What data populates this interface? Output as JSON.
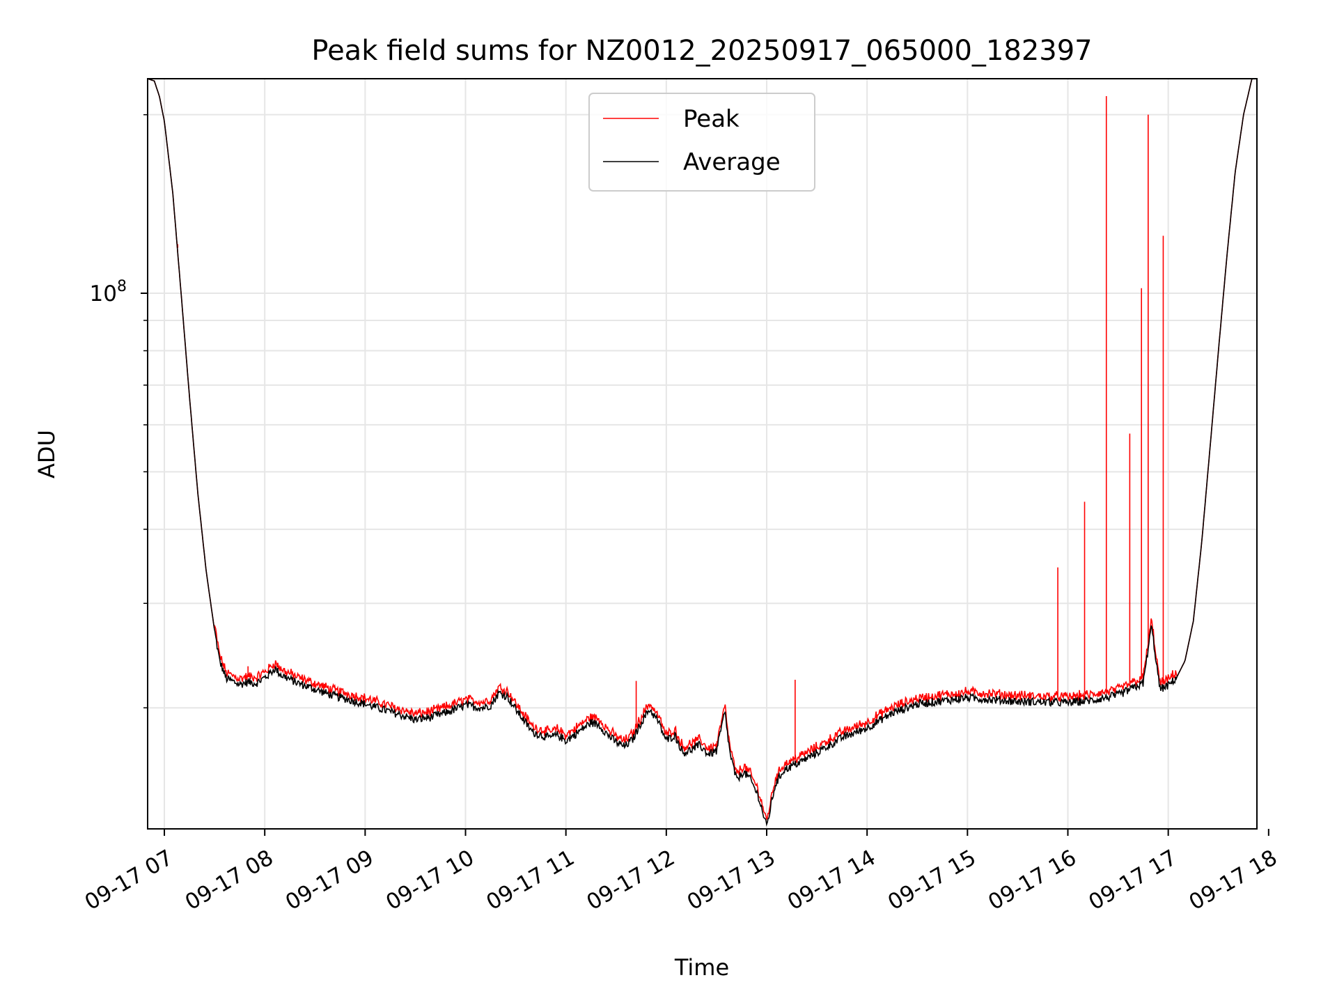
{
  "chart_data": {
    "type": "line",
    "title": "Peak field sums for NZ0012_20250917_065000_182397",
    "xlabel": "Time",
    "ylabel": "ADU",
    "y_scale": "log",
    "grid": true,
    "legend_placement": "upper center",
    "x_range": [
      "2025-09-17 06:50",
      "2025-09-17 17:53"
    ],
    "y_range": [
      12500000,
      230000000
    ],
    "x_tick_labels": [
      "09-17 07",
      "09-17 08",
      "09-17 09",
      "09-17 10",
      "09-17 11",
      "09-17 12",
      "09-17 13",
      "09-17 14",
      "09-17 15",
      "09-17 16",
      "09-17 17",
      "09-17 18"
    ],
    "x_ticks": [
      "2025-09-17 07:00",
      "2025-09-17 08:00",
      "2025-09-17 09:00",
      "2025-09-17 10:00",
      "2025-09-17 11:00",
      "2025-09-17 12:00",
      "2025-09-17 13:00",
      "2025-09-17 14:00",
      "2025-09-17 15:00",
      "2025-09-17 16:00",
      "2025-09-17 17:00",
      "2025-09-17 18:00"
    ],
    "y_tick_major": {
      "value": 100000000,
      "base": "10",
      "exponent": "8"
    },
    "y_minor_ticks": [
      20000000,
      30000000,
      40000000,
      50000000,
      60000000,
      70000000,
      80000000,
      90000000,
      200000000
    ],
    "series": [
      {
        "name": "Peak",
        "color": "#ff0000",
        "baseline_source": "Average",
        "offset_factor": 1.02,
        "spikes": [
          {
            "x": "2025-09-17 07:08",
            "y": 121000000
          },
          {
            "x": "2025-09-17 07:50",
            "y": 23500000
          },
          {
            "x": "2025-09-17 11:42",
            "y": 22200000
          },
          {
            "x": "2025-09-17 13:17",
            "y": 22300000
          },
          {
            "x": "2025-09-17 15:54",
            "y": 34500000
          },
          {
            "x": "2025-09-17 16:10",
            "y": 44500000
          },
          {
            "x": "2025-09-17 16:23",
            "y": 215000000
          },
          {
            "x": "2025-09-17 16:37",
            "y": 58000000
          },
          {
            "x": "2025-09-17 16:44",
            "y": 102000000
          },
          {
            "x": "2025-09-17 16:48",
            "y": 200000000
          },
          {
            "x": "2025-09-17 16:57",
            "y": 125000000
          }
        ]
      },
      {
        "name": "Average",
        "color": "#000000",
        "x": [
          "2025-09-17 06:50",
          "2025-09-17 06:54",
          "2025-09-17 06:57",
          "2025-09-17 07:00",
          "2025-09-17 07:05",
          "2025-09-17 07:10",
          "2025-09-17 07:15",
          "2025-09-17 07:20",
          "2025-09-17 07:25",
          "2025-09-17 07:30",
          "2025-09-17 07:33",
          "2025-09-17 07:37",
          "2025-09-17 07:45",
          "2025-09-17 07:50",
          "2025-09-17 07:55",
          "2025-09-17 08:02",
          "2025-09-17 08:06",
          "2025-09-17 08:10",
          "2025-09-17 08:20",
          "2025-09-17 08:40",
          "2025-09-17 09:00",
          "2025-09-17 09:20",
          "2025-09-17 09:30",
          "2025-09-17 09:40",
          "2025-09-17 09:50",
          "2025-09-17 10:00",
          "2025-09-17 10:10",
          "2025-09-17 10:15",
          "2025-09-17 10:20",
          "2025-09-17 10:25",
          "2025-09-17 10:30",
          "2025-09-17 10:40",
          "2025-09-17 10:50",
          "2025-09-17 10:55",
          "2025-09-17 11:00",
          "2025-09-17 11:05",
          "2025-09-17 11:15",
          "2025-09-17 11:20",
          "2025-09-17 11:25",
          "2025-09-17 11:30",
          "2025-09-17 11:35",
          "2025-09-17 11:40",
          "2025-09-17 11:45",
          "2025-09-17 11:50",
          "2025-09-17 11:55",
          "2025-09-17 12:00",
          "2025-09-17 12:05",
          "2025-09-17 12:10",
          "2025-09-17 12:15",
          "2025-09-17 12:20",
          "2025-09-17 12:25",
          "2025-09-17 12:30",
          "2025-09-17 12:35",
          "2025-09-17 12:38",
          "2025-09-17 12:42",
          "2025-09-17 12:46",
          "2025-09-17 12:50",
          "2025-09-17 12:55",
          "2025-09-17 13:00",
          "2025-09-17 13:05",
          "2025-09-17 13:10",
          "2025-09-17 13:20",
          "2025-09-17 13:30",
          "2025-09-17 13:45",
          "2025-09-17 14:00",
          "2025-09-17 14:15",
          "2025-09-17 14:30",
          "2025-09-17 15:00",
          "2025-09-17 15:30",
          "2025-09-17 16:00",
          "2025-09-17 16:15",
          "2025-09-17 16:30",
          "2025-09-17 16:45",
          "2025-09-17 16:50",
          "2025-09-17 16:55",
          "2025-09-17 17:00",
          "2025-09-17 17:05",
          "2025-09-17 17:10",
          "2025-09-17 17:15",
          "2025-09-17 17:20",
          "2025-09-17 17:25",
          "2025-09-17 17:30",
          "2025-09-17 17:35",
          "2025-09-17 17:40",
          "2025-09-17 17:45",
          "2025-09-17 17:50",
          "2025-09-17 17:53"
        ],
        "y": [
          230000000,
          228000000,
          215000000,
          195000000,
          148000000,
          100000000,
          67000000,
          46000000,
          34000000,
          27000000,
          24000000,
          22400000,
          21900000,
          22100000,
          22000000,
          22700000,
          23300000,
          22700000,
          22000000,
          21000000,
          20300000,
          19500000,
          19100000,
          19300000,
          19700000,
          20200000,
          20000000,
          20200000,
          21200000,
          20900000,
          19900000,
          18200000,
          17800000,
          18000000,
          17600000,
          18000000,
          18900000,
          18700000,
          18000000,
          17500000,
          17200000,
          17700000,
          18900000,
          19900000,
          19000000,
          17600000,
          18000000,
          16800000,
          17000000,
          17300000,
          16700000,
          16900000,
          19700000,
          16800000,
          15100000,
          15600000,
          15200000,
          14200000,
          12600000,
          14800000,
          15700000,
          16200000,
          16800000,
          17800000,
          18500000,
          19600000,
          20300000,
          20800000,
          20500000,
          20400000,
          20600000,
          21000000,
          22000000,
          27500000,
          21500000,
          21800000,
          22500000,
          24000000,
          28000000,
          38000000,
          55000000,
          80000000,
          115000000,
          160000000,
          200000000,
          230000000,
          230000000
        ]
      }
    ]
  }
}
